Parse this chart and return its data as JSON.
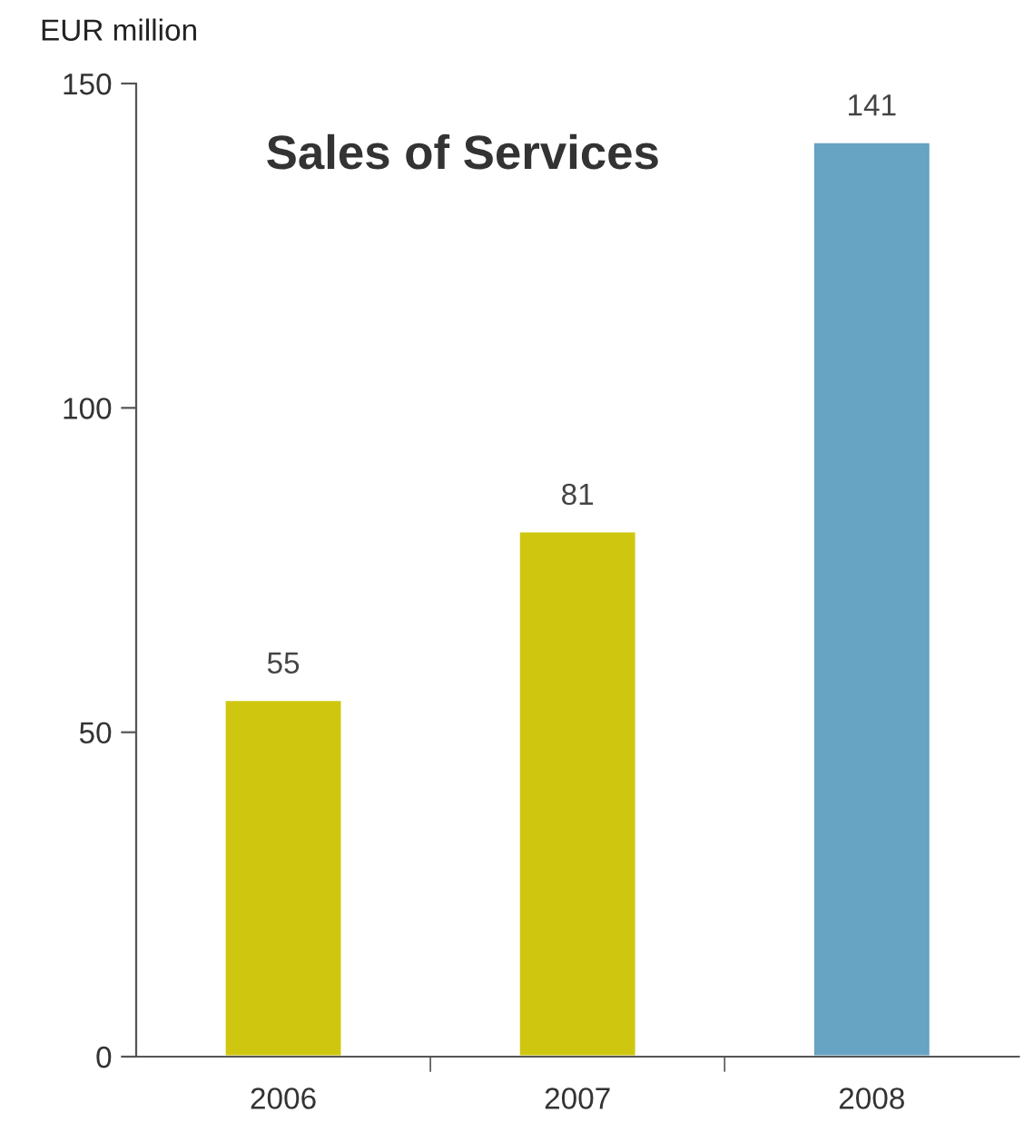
{
  "chart_data": {
    "type": "bar",
    "title": "Sales of Services",
    "ylabel": "EUR million",
    "categories": [
      "2006",
      "2007",
      "2008"
    ],
    "values": [
      55,
      81,
      141
    ],
    "colors": [
      "#cfc70f",
      "#cfc70f",
      "#67a3c3"
    ],
    "ylim": [
      0,
      150
    ],
    "yticks": [
      0,
      50,
      100,
      150
    ],
    "data_labels": true,
    "grid": false,
    "legend": false
  }
}
